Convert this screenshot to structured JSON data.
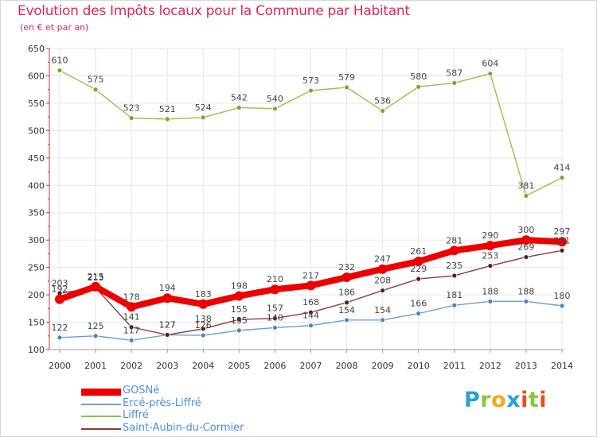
{
  "title": "Evolution des Impôts locaux pour la Commune par Habitant",
  "subtitle": "(en € et par an)",
  "logo": {
    "text": "Proxiti",
    "letters": [
      "P",
      "r",
      "o",
      "x",
      "i",
      "t",
      "i"
    ],
    "colors": [
      "#2a9fd8",
      "#8cc63f",
      "#f7a81b",
      "#2a9fd8",
      "#e94e1b",
      "#8cc63f",
      "#e94e1b"
    ]
  },
  "chart_data": {
    "type": "line",
    "title": "Evolution des Impôts locaux pour la Commune par Habitant",
    "ylabel": "(en € et par an)",
    "xlabel": "",
    "x": [
      "2000",
      "2001",
      "2002",
      "2003",
      "2004",
      "2005",
      "2006",
      "2007",
      "2008",
      "2009",
      "2010",
      "2011",
      "2012",
      "2013",
      "2014"
    ],
    "ylim": [
      100,
      650
    ],
    "yticks": [
      "100",
      "150",
      "200",
      "250",
      "300",
      "350",
      "400",
      "450",
      "500",
      "550",
      "600",
      "650"
    ],
    "grid": true,
    "legend_position": "bottom-left",
    "series": [
      {
        "name": "Liffré",
        "color": "#8dc63f",
        "marker": "#6ab023",
        "values": [
          610,
          575,
          523,
          521,
          524,
          542,
          540,
          573,
          579,
          536,
          580,
          587,
          604,
          381,
          414
        ],
        "labels": [
          "610",
          "575",
          "523",
          "521",
          "524",
          "542",
          "540",
          "573",
          "579",
          "536",
          "580",
          "587",
          "604",
          "381",
          "414"
        ]
      },
      {
        "name": "Ercé-près-Liffré",
        "color": "#6a9fd0",
        "marker": "#4a86c2",
        "values": [
          122,
          125,
          117,
          127,
          126,
          135,
          140,
          144,
          154,
          154,
          166,
          181,
          188,
          188,
          180
        ],
        "labels": [
          "122",
          "125",
          "117",
          "127",
          "",
          "",
          "",
          "",
          "154",
          "154",
          "166",
          "181",
          "188",
          "188",
          "180"
        ]
      },
      {
        "name": "Saint-Aubin-du-Cormier",
        "color": "#8b3a3a",
        "marker": "#5c1a1a",
        "values": [
          203,
          213,
          141,
          127,
          138,
          155,
          157,
          168,
          186,
          208,
          229,
          235,
          253,
          269,
          281
        ],
        "labels": [
          "203",
          "213",
          "141",
          "127",
          "138",
          "155",
          "157",
          "168",
          "186",
          "208",
          "229",
          "235",
          "253",
          "269",
          "281"
        ]
      },
      {
        "name": "GOSNé",
        "color": "#ee0000",
        "marker": "#ee0000",
        "values": [
          192,
          215,
          178,
          194,
          183,
          198,
          210,
          217,
          232,
          247,
          261,
          281,
          290,
          300,
          297
        ],
        "labels": [
          "192",
          "215",
          "178",
          "194",
          "183",
          "198",
          "210",
          "217",
          "232",
          "247",
          "261",
          "281",
          "290",
          "300",
          "297"
        ]
      }
    ],
    "extra_labels": [
      {
        "series": "Ercé-près-Liffré",
        "index": 4,
        "text": "126"
      },
      {
        "series": "Ercé-près-Liffré",
        "index": 5,
        "text": "135"
      },
      {
        "series": "Ercé-près-Liffré",
        "index": 6,
        "text": "140"
      },
      {
        "series": "Ercé-près-Liffré",
        "index": 7,
        "text": "144"
      }
    ]
  },
  "legend": [
    {
      "name": "GOSNé",
      "color": "#ee0000",
      "thick": true
    },
    {
      "name": "Ercé-près-Liffré",
      "color": "#6a9fd0",
      "thick": false
    },
    {
      "name": "Liffré",
      "color": "#8dc63f",
      "thick": false
    },
    {
      "name": "Saint-Aubin-du-Cormier",
      "color": "#8b3a3a",
      "thick": false
    }
  ]
}
